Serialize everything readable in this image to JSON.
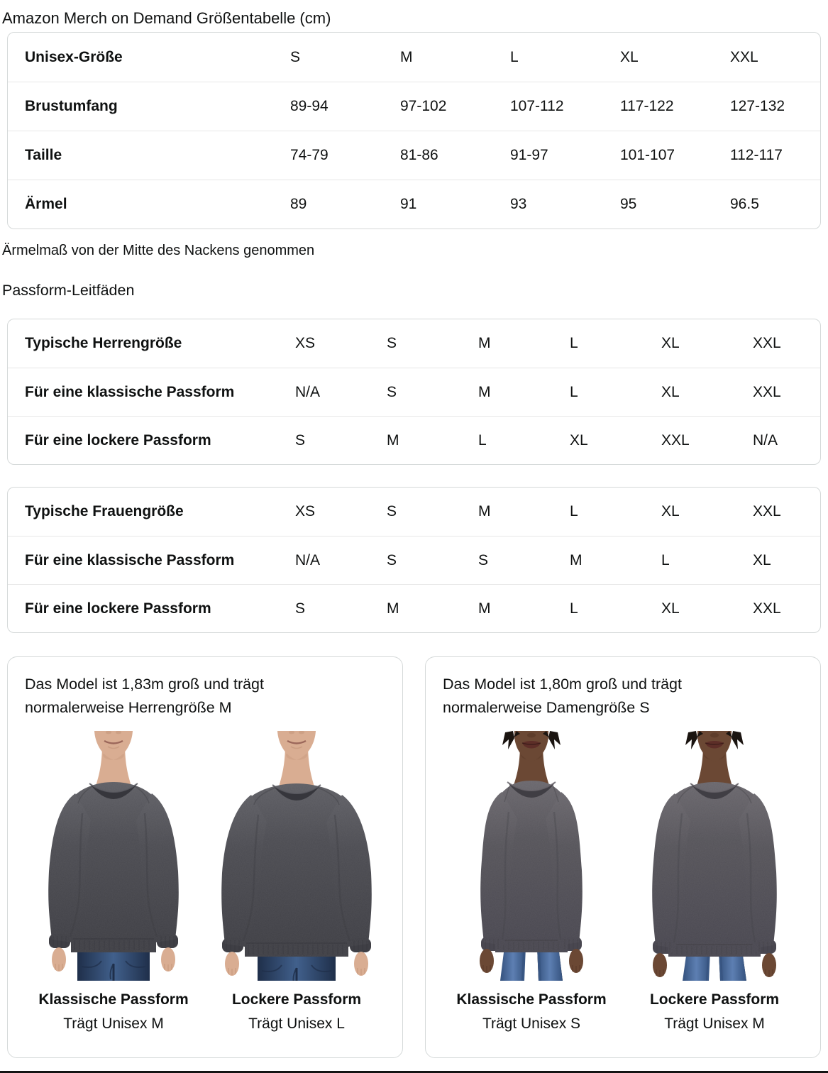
{
  "page": {
    "title": "Amazon Merch on Demand Größentabelle (cm)",
    "note": "Ärmelmaß von der Mitte des Nackens genommen",
    "fit_guides_heading": "Passform-Leitfäden"
  },
  "size_table": {
    "rows": [
      {
        "label": "Unisex-Größe",
        "values": [
          "S",
          "M",
          "L",
          "XL",
          "XXL"
        ]
      },
      {
        "label": "Brustumfang",
        "values": [
          "89-94",
          "97-102",
          "107-112",
          "117-122",
          "127-132"
        ]
      },
      {
        "label": "Taille",
        "values": [
          "74-79",
          "81-86",
          "91-97",
          "101-107",
          "112-117"
        ]
      },
      {
        "label": "Ärmel",
        "values": [
          "89",
          "91",
          "93",
          "95",
          "96.5"
        ]
      }
    ]
  },
  "mens_fit_table": {
    "rows": [
      {
        "label": "Typische Herrengröße",
        "values": [
          "XS",
          "S",
          "M",
          "L",
          "XL",
          "XXL"
        ]
      },
      {
        "label": "Für eine klassische Passform",
        "values": [
          "N/A",
          "S",
          "M",
          "L",
          "XL",
          "XXL"
        ]
      },
      {
        "label": "Für eine lockere Passform",
        "values": [
          "S",
          "M",
          "L",
          "XL",
          "XXL",
          "N/A"
        ]
      }
    ]
  },
  "womens_fit_table": {
    "rows": [
      {
        "label": "Typische Frauengröße",
        "values": [
          "XS",
          "S",
          "M",
          "L",
          "XL",
          "XXL"
        ]
      },
      {
        "label": "Für eine klassische Passform",
        "values": [
          "N/A",
          "S",
          "S",
          "M",
          "L",
          "XL"
        ]
      },
      {
        "label": "Für eine lockere Passform",
        "values": [
          "S",
          "M",
          "M",
          "L",
          "XL",
          "XXL"
        ]
      }
    ]
  },
  "model_cards": [
    {
      "description": "Das Model ist 1,83m groß und trägt normalerweise Herrengröße M",
      "figures": [
        {
          "fit_label": "Klassische Passform",
          "size_label": "Trägt Unisex M"
        },
        {
          "fit_label": "Lockere Passform",
          "size_label": "Trägt Unisex L"
        }
      ]
    },
    {
      "description": "Das Model ist 1,80m groß und trägt normalerweise Damengröße S",
      "figures": [
        {
          "fit_label": "Klassische Passform",
          "size_label": "Trägt Unisex S"
        },
        {
          "fit_label": "Lockere Passform",
          "size_label": "Trägt Unisex M"
        }
      ]
    }
  ],
  "colors": {
    "text": "#0F1111",
    "table_border": "#D5D9D9",
    "row_divider": "#E7E7E7",
    "sweatshirt_heather": "#4C4C52",
    "mens_jeans": "#2F4465",
    "womens_jeans": "#48699C",
    "mens_skin": "#D9AD92",
    "womens_skin": "#6B4834"
  }
}
